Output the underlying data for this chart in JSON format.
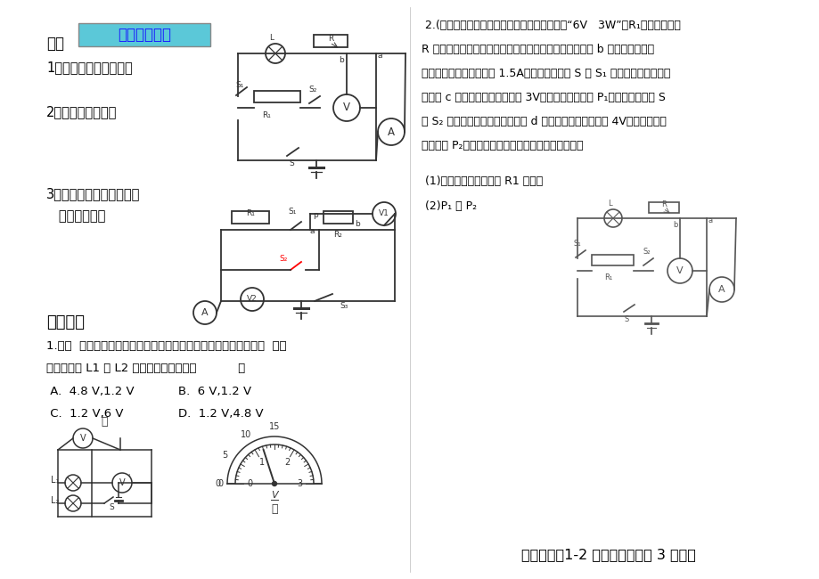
{
  "bg_color": "#ffffff",
  "title_box_color": "#5bc8d8",
  "title_box_text": "电路图分析：",
  "section3_title": "三、",
  "q1": "1、用电器的连接方式？",
  "q2": "2、电表所测对象？",
  "q3_line1": "3、滑动变阵器接入的方式",
  "q3_line2": "   及接入部分。",
  "problem2_line1": " 2.(北京朝阳区二模）如图所示电路，灯泡标有“6V   3W”，R₁为定値电阔、",
  "problem2_line2": "R 为滑动变阵器。当开关都闭合，滑动变阵器的滑片位于 b 端时，灯恰能正",
  "problem2_line3": "常发光，电流表的示数为 1.5A。当只闭合开关 S 和 S₁ 时，滑动变阵器的滑",
  "problem2_line4": "片位于 c 点时，电压表的示数为 3V，灯泡的电功率为 P₁；当只闭合开关 S",
  "problem2_line5": "和 S₂ 时，滑动变阵器的滑片位于 d 点时，电压表的示数为 4V，滑动变阵器",
  "problem2_line6": "的功率为 P₂。灯丝的电阔与电源电压保持不变，求：",
  "sub1": " (1)电源电压和定値电阔 R1 的阔値",
  "sub2": " (2)P₁ 和 P₂",
  "exercise_title": "练习二：",
  "exercise_q1": "1.在图  甲所示电路中，当闭合开关后，两个电压表指针偏转均为图  乙所",
  "exercise_q2": "示，则灯泡 L1 和 L2 两端的电压分别为（           ）",
  "choice_A": " A.  4.8 V,1.2 V",
  "choice_B": "B.  6 V,1.2 V",
  "choice_C": " C.  1.2 V,6 V",
  "choice_D": "D.  1.2 V,4.8 V",
  "homework": "四、作业：1-2 题（必做），第 3 题选做"
}
